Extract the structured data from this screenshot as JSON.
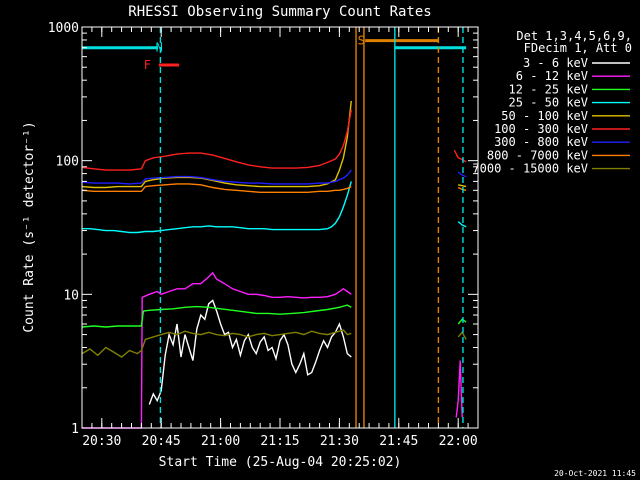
{
  "chart_data": {
    "type": "line",
    "title": "RHESSI Observing Summary Count Rates",
    "xlabel": "Start Time (25-Aug-04 20:25:02)",
    "ylabel": "Count Rate (s⁻¹ detector⁻¹)",
    "ylog": true,
    "ylim": [
      1,
      1000
    ],
    "xlim_minutes": [
      0,
      100
    ],
    "x_ticks": [
      {
        "t": 5,
        "label": "20:30"
      },
      {
        "t": 20,
        "label": "20:45"
      },
      {
        "t": 35,
        "label": "21:00"
      },
      {
        "t": 50,
        "label": "21:15"
      },
      {
        "t": 65,
        "label": "21:30"
      },
      {
        "t": 80,
        "label": "21:45"
      },
      {
        "t": 95,
        "label": "22:00"
      }
    ],
    "y_ticks": [
      {
        "v": 1,
        "label": "1"
      },
      {
        "v": 10,
        "label": "10"
      },
      {
        "v": 100,
        "label": "100"
      },
      {
        "v": 1000,
        "label": "1000"
      }
    ],
    "legend_header": [
      "Det 1,3,4,5,6,9,",
      "FDecim 1, Att 0"
    ],
    "legend_position": "right",
    "footer_date": "20-Oct-2021 11:45",
    "annotations": [
      {
        "text": "N",
        "t": 19.5,
        "color": "#00e0e0"
      },
      {
        "text": "F",
        "t": 16.5,
        "color": "#ff2020"
      },
      {
        "text": "S",
        "t": 70.5,
        "color": "#e08000"
      }
    ],
    "state_lines": [
      {
        "kind": "night",
        "color": "#00e0e0",
        "level": 700,
        "segments": [
          [
            0,
            19.2
          ],
          [
            79,
            97
          ]
        ]
      },
      {
        "kind": "flare",
        "color": "#ff2020",
        "level": 520,
        "segments": [
          [
            19.4,
            24.5
          ]
        ]
      },
      {
        "kind": "saa",
        "color": "#e08000",
        "level": 790,
        "segments": [
          [
            71.5,
            90
          ]
        ]
      }
    ],
    "markers": [
      {
        "t": 19.8,
        "color": "#00e0e0",
        "style": "dashed"
      },
      {
        "t": 96.2,
        "color": "#00e0e0",
        "style": "dashed"
      },
      {
        "t": 69.2,
        "color": "#e08000",
        "style": "solid"
      },
      {
        "t": 71.2,
        "color": "#e08000",
        "style": "solid"
      },
      {
        "t": 79.0,
        "color": "#00e0e0",
        "style": "solid"
      },
      {
        "t": 90.0,
        "color": "#e08000",
        "style": "dashed"
      }
    ],
    "series": [
      {
        "name": "3 - 6 keV",
        "color": "#ffffff",
        "segments": [
          {
            "x": [
              17,
              18,
              19,
              20,
              21,
              22,
              23,
              24,
              25,
              26,
              27,
              28,
              29,
              30,
              31,
              32,
              33,
              34,
              35,
              36,
              37,
              38,
              39,
              40,
              41,
              42,
              43,
              44,
              45,
              46,
              47,
              48,
              49,
              50,
              51,
              52,
              53,
              54,
              55,
              56,
              57,
              58,
              59,
              60,
              61,
              62,
              63,
              64,
              65,
              66,
              67,
              68
            ],
            "y": [
              1.5,
              1.8,
              1.6,
              1.9,
              3.5,
              5,
              4.2,
              6,
              3.4,
              5,
              4,
              3.2,
              5.5,
              7,
              6.5,
              8.5,
              9,
              7.5,
              6,
              5,
              5.2,
              4,
              4.6,
              3.5,
              4.5,
              5,
              4,
              3.6,
              4.4,
              4.8,
              3.8,
              4,
              3.3,
              4.5,
              5,
              4.2,
              3,
              2.6,
              3,
              3.6,
              2.5,
              2.6,
              3.1,
              3.8,
              4.5,
              4,
              4.8,
              5.2,
              6,
              4.8,
              3.6,
              3.4
            ]
          }
        ]
      },
      {
        "name": "6 - 12 keV",
        "color": "#ff20ff",
        "segments": [
          {
            "x": [
              0,
              15,
              15.2,
              17,
              19,
              20,
              22,
              24,
              26,
              28,
              30,
              32,
              33,
              34,
              35,
              36,
              38,
              40,
              42,
              44,
              46,
              48,
              50,
              52,
              54,
              56,
              58,
              60,
              62,
              64,
              66,
              67,
              68
            ],
            "y": [
              1,
              1,
              9.5,
              10,
              10.5,
              10,
              10.5,
              11,
              11,
              12,
              12,
              13.5,
              14.5,
              13,
              12.5,
              12,
              11,
              10.5,
              10,
              10,
              9.8,
              9.5,
              9.5,
              9.6,
              9.5,
              9.4,
              9.5,
              9.5,
              9.6,
              10,
              11,
              10.5,
              10
            ]
          },
          {
            "x": [
              94.5,
              95,
              95.5,
              96
            ],
            "y": [
              1.2,
              1.6,
              3.2,
              1.2
            ]
          }
        ]
      },
      {
        "name": "12 - 25 keV",
        "color": "#20ff20",
        "segments": [
          {
            "x": [
              0,
              3,
              6,
              9,
              12,
              15,
              15.5,
              17,
              20,
              23,
              26,
              29,
              32,
              35,
              38,
              41,
              44,
              47,
              50,
              53,
              56,
              59,
              62,
              65,
              67,
              68
            ],
            "y": [
              5.7,
              5.8,
              5.7,
              5.8,
              5.8,
              5.8,
              7.5,
              7.6,
              7.7,
              7.8,
              8,
              8.1,
              8,
              7.8,
              7.6,
              7.4,
              7.2,
              7.2,
              7.1,
              7.2,
              7.3,
              7.5,
              7.7,
              8,
              8.3,
              8
            ]
          },
          {
            "x": [
              95,
              96,
              97
            ],
            "y": [
              6,
              6.5,
              6.2
            ]
          }
        ]
      },
      {
        "name": "25 - 50 keV",
        "color": "#00ffff",
        "segments": [
          {
            "x": [
              0,
              2,
              4,
              6,
              8,
              10,
              12,
              14,
              16,
              18,
              20,
              22,
              24,
              26,
              28,
              30,
              32,
              34,
              36,
              38,
              40,
              42,
              44,
              46,
              48,
              50,
              52,
              54,
              56,
              58,
              60,
              62,
              63,
              64,
              65,
              66,
              67,
              68
            ],
            "y": [
              31,
              31,
              30.5,
              30,
              30,
              29.5,
              29,
              29,
              29.5,
              29.5,
              30,
              30.5,
              31,
              31.5,
              32,
              32,
              32.5,
              32,
              32,
              32,
              31.5,
              31,
              31,
              31,
              30.5,
              30.5,
              30.5,
              30.5,
              30.5,
              30.5,
              30.5,
              31,
              32,
              34,
              38,
              45,
              55,
              70
            ]
          },
          {
            "x": [
              95,
              96,
              97
            ],
            "y": [
              35,
              33,
              32
            ]
          }
        ]
      },
      {
        "name": "50 - 100 keV",
        "color": "#e0c000",
        "segments": [
          {
            "x": [
              0,
              3,
              6,
              9,
              12,
              15,
              16,
              18,
              21,
              24,
              27,
              30,
              33,
              36,
              39,
              42,
              45,
              48,
              51,
              54,
              57,
              60,
              62,
              64,
              65,
              66,
              67,
              68
            ],
            "y": [
              64,
              63,
              63,
              64,
              64,
              64,
              70,
              72,
              74,
              75,
              75,
              74,
              71,
              68,
              66,
              65,
              64,
              64,
              64,
              64,
              64,
              65,
              67,
              72,
              85,
              105,
              150,
              280
            ]
          },
          {
            "x": [
              95,
              96,
              97
            ],
            "y": [
              66,
              65,
              64
            ]
          }
        ]
      },
      {
        "name": "100 - 300 keV",
        "color": "#ff2020",
        "segments": [
          {
            "x": [
              0,
              3,
              6,
              9,
              12,
              15,
              16,
              18,
              21,
              24,
              27,
              30,
              33,
              36,
              39,
              42,
              45,
              48,
              51,
              54,
              57,
              60,
              62,
              64,
              65,
              66,
              67,
              68
            ],
            "y": [
              89,
              87,
              85,
              85,
              85,
              87,
              100,
              105,
              108,
              112,
              114,
              114,
              110,
              104,
              98,
              93,
              90,
              88,
              88,
              88,
              89,
              92,
              97,
              103,
              112,
              130,
              165,
              240
            ]
          },
          {
            "x": [
              94,
              95,
              96,
              97
            ],
            "y": [
              120,
              105,
              102,
              98
            ]
          }
        ]
      },
      {
        "name": "300 - 800 keV",
        "color": "#2020ff",
        "segments": [
          {
            "x": [
              0,
              3,
              6,
              9,
              12,
              15,
              16,
              18,
              21,
              24,
              27,
              30,
              33,
              36,
              39,
              42,
              45,
              48,
              51,
              54,
              57,
              60,
              62,
              64,
              65,
              66,
              67,
              68
            ],
            "y": [
              69,
              68,
              68,
              68,
              67,
              68,
              73,
              74,
              75,
              76,
              76,
              75,
              72,
              70,
              69,
              68,
              68,
              67,
              67,
              67,
              67,
              68,
              68,
              70,
              72,
              74,
              78,
              85
            ]
          },
          {
            "x": [
              95,
              96,
              97
            ],
            "y": [
              82,
              78,
              76
            ]
          }
        ]
      },
      {
        "name": "800 - 7000 keV",
        "color": "#ff8000",
        "segments": [
          {
            "x": [
              0,
              3,
              6,
              9,
              12,
              15,
              16,
              18,
              21,
              24,
              27,
              30,
              33,
              36,
              39,
              42,
              45,
              48,
              51,
              54,
              57,
              60,
              62,
              64,
              65,
              66,
              67,
              68
            ],
            "y": [
              60,
              59,
              59,
              59,
              59,
              59,
              64,
              65,
              66,
              67,
              67,
              66,
              63,
              61,
              60,
              59,
              58,
              58,
              58,
              58,
              58,
              59,
              59,
              60,
              60,
              61,
              62,
              64
            ]
          },
          {
            "x": [
              95,
              96,
              97
            ],
            "y": [
              63,
              61,
              60
            ]
          }
        ]
      },
      {
        "name": "7000 - 15000 keV",
        "color": "#808000",
        "segments": [
          {
            "x": [
              0,
              2,
              4,
              6,
              8,
              10,
              12,
              14,
              15,
              16,
              18,
              20,
              22,
              24,
              26,
              28,
              30,
              32,
              34,
              36,
              38,
              40,
              42,
              44,
              46,
              48,
              50,
              52,
              54,
              56,
              58,
              60,
              62,
              64,
              66,
              67,
              68
            ],
            "y": [
              3.6,
              3.9,
              3.5,
              4,
              3.7,
              3.4,
              3.8,
              3.6,
              3.8,
              4.6,
              4.8,
              5,
              5.2,
              5,
              5.3,
              5.1,
              5,
              5.2,
              5,
              4.9,
              5.1,
              5,
              4.8,
              5,
              5.1,
              4.9,
              5,
              5.1,
              5.2,
              5,
              5.3,
              5.1,
              5,
              5.2,
              5.4,
              5,
              5.1
            ]
          },
          {
            "x": [
              95,
              96,
              97
            ],
            "y": [
              4.8,
              5.2,
              4.6
            ]
          }
        ]
      }
    ]
  }
}
